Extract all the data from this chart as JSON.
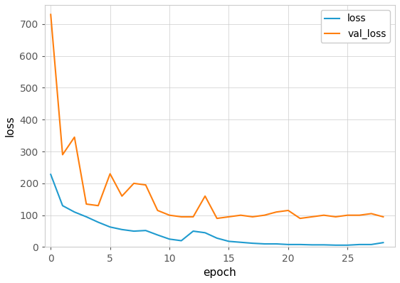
{
  "loss_x": [
    0,
    1,
    2,
    3,
    4,
    5,
    6,
    7,
    8,
    9,
    10,
    11,
    12,
    13,
    14,
    15,
    16,
    17,
    18,
    19,
    20,
    21,
    22,
    23,
    24,
    25,
    26,
    27,
    28
  ],
  "loss_y": [
    228,
    130,
    110,
    95,
    78,
    63,
    55,
    50,
    52,
    38,
    25,
    20,
    50,
    45,
    28,
    18,
    15,
    12,
    10,
    10,
    8,
    8,
    7,
    7,
    6,
    6,
    8,
    8,
    14
  ],
  "val_loss_x": [
    0,
    1,
    2,
    3,
    4,
    5,
    6,
    7,
    8,
    9,
    10,
    11,
    12,
    13,
    14,
    15,
    16,
    17,
    18,
    19,
    20,
    21,
    22,
    23,
    24,
    25,
    26,
    27,
    28
  ],
  "val_loss_y": [
    730,
    290,
    345,
    135,
    130,
    230,
    160,
    200,
    195,
    115,
    100,
    95,
    95,
    160,
    90,
    95,
    100,
    95,
    100,
    110,
    115,
    90,
    95,
    100,
    95,
    100,
    100,
    105,
    95
  ],
  "loss_color": "#1f9bcf",
  "val_loss_color": "#ff7f0e",
  "xlabel": "epoch",
  "ylabel": "loss",
  "xlim": [
    -0.5,
    29
  ],
  "ylim": [
    0,
    760
  ],
  "xticks": [
    0,
    5,
    10,
    15,
    20,
    25
  ],
  "yticks": [
    0,
    100,
    200,
    300,
    400,
    500,
    600,
    700
  ],
  "legend_labels": [
    "loss",
    "val_loss"
  ],
  "background_color": "#ffffff",
  "axes_bg_color": "#ffffff",
  "grid_color": "#cccccc",
  "spine_color": "#cccccc",
  "tick_color": "#555555",
  "label_fontsize": 11,
  "tick_fontsize": 10,
  "legend_fontsize": 10,
  "line_width": 1.5
}
